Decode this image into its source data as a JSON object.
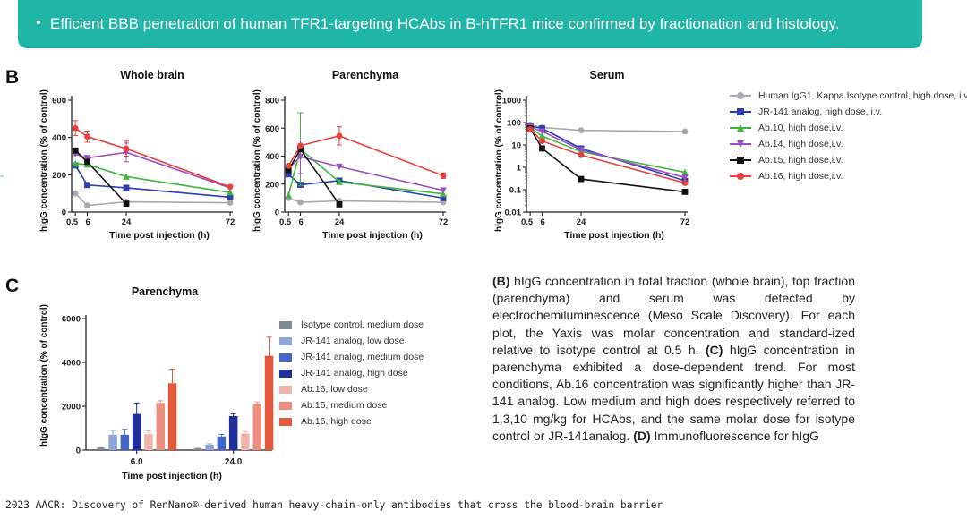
{
  "banner": {
    "bullet": "•",
    "text": "Efficient BBB penetration of human TFR1-targeting HCAbs in B-hTFR1 mice confirmed by fractionation and histology."
  },
  "panels": {
    "b": "B",
    "c": "C"
  },
  "edge_mark": "-",
  "series_styles": [
    {
      "name": "Human IgG1, Kappa Isotype control, high dose, i.v.",
      "color": "#a9a9b0",
      "marker": "circle"
    },
    {
      "name": "JR-141 analog, high dose, i.v.",
      "color": "#2b3fb0",
      "marker": "square"
    },
    {
      "name": "Ab.10, high dose,i.v.",
      "color": "#3fb73f",
      "marker": "triangle"
    },
    {
      "name": "Ab.14, high dose,i.v.",
      "color": "#9b4fc4",
      "marker": "triangle-down"
    },
    {
      "name": "Ab.15, high dose,i.v.",
      "color": "#111111",
      "marker": "square"
    },
    {
      "name": "Ab.16, high dose,i.v.",
      "color": "#e8403a",
      "marker": "circle"
    }
  ],
  "bar_styles": [
    {
      "name": "Isotype control, medium dose",
      "color": "#7f8896"
    },
    {
      "name": "JR-141 analog, low dose",
      "color": "#8fa6dd"
    },
    {
      "name": "JR-141 analog, medium dose",
      "color": "#4466c8"
    },
    {
      "name": "JR-141 analog, high dose",
      "color": "#1f2f9c"
    },
    {
      "name": "Ab.16, low dose",
      "color": "#f2b3aa"
    },
    {
      "name": "Ab.16, medium dose",
      "color": "#ec8e80"
    },
    {
      "name": "Ab.16, high dose",
      "color": "#e55a3a"
    }
  ],
  "chart_data": [
    {
      "id": "whole-brain",
      "type": "line",
      "title": "Whole brain",
      "xlabel": "Time post injection (h)",
      "ylabel": "hIgG concentration (% of control)",
      "x": [
        0.5,
        6,
        24,
        72
      ],
      "x_tick_labels": [
        "0.5",
        "6",
        "24",
        "72"
      ],
      "xlim": [
        0,
        72
      ],
      "ylim": [
        0,
        600
      ],
      "y_ticks": [
        0,
        200,
        400,
        600
      ],
      "y_tick_labels": [
        "0",
        "200",
        "400",
        "600"
      ],
      "series": [
        {
          "name": "Human IgG1, Kappa Isotype control, high dose, i.v.",
          "values": [
            100,
            35,
            55,
            50
          ],
          "errors": [
            0,
            8,
            0,
            0
          ]
        },
        {
          "name": "JR-141 analog, high dose, i.v.",
          "values": [
            250,
            145,
            130,
            80
          ],
          "errors": [
            0,
            0,
            0,
            0
          ]
        },
        {
          "name": "Ab.10, high dose,i.v.",
          "values": [
            260,
            255,
            190,
            105
          ],
          "errors": [
            0,
            0,
            0,
            0
          ]
        },
        {
          "name": "Ab.14, high dose,i.v.",
          "values": [
            310,
            290,
            320,
            130
          ],
          "errors": [
            0,
            0,
            50,
            0
          ]
        },
        {
          "name": "Ab.15, high dose,i.v.",
          "values": [
            330,
            270,
            45,
            null
          ],
          "errors": [
            0,
            0,
            0,
            0
          ]
        },
        {
          "name": "Ab.16, high dose,i.v.",
          "values": [
            450,
            405,
            340,
            135
          ],
          "errors": [
            40,
            30,
            40,
            0
          ]
        }
      ]
    },
    {
      "id": "parenchyma-line",
      "type": "line",
      "title": "Parenchyma",
      "xlabel": "Time post injection (h)",
      "ylabel": "hIgG concentration (% of control)",
      "x": [
        0.5,
        6,
        24,
        72
      ],
      "x_tick_labels": [
        "0.5",
        "6",
        "24",
        "72"
      ],
      "xlim": [
        0,
        72
      ],
      "ylim": [
        0,
        800
      ],
      "y_ticks": [
        0,
        200,
        400,
        600,
        800
      ],
      "y_tick_labels": [
        "0",
        "200",
        "400",
        "600",
        "800"
      ],
      "series": [
        {
          "name": "Human IgG1, Kappa Isotype control, high dose, i.v.",
          "values": [
            100,
            70,
            80,
            70
          ],
          "errors": [
            0,
            0,
            0,
            0
          ]
        },
        {
          "name": "JR-141 analog, high dose, i.v.",
          "values": [
            270,
            195,
            225,
            100
          ],
          "errors": [
            0,
            0,
            0,
            0
          ]
        },
        {
          "name": "Ab.10, high dose,i.v.",
          "values": [
            120,
            450,
            215,
            130
          ],
          "errors": [
            0,
            260,
            0,
            0
          ]
        },
        {
          "name": "Ab.14, high dose,i.v.",
          "values": [
            310,
            395,
            325,
            155
          ],
          "errors": [
            0,
            120,
            0,
            0
          ]
        },
        {
          "name": "Ab.15, high dose,i.v.",
          "values": [
            300,
            450,
            55,
            null
          ],
          "errors": [
            0,
            0,
            0,
            0
          ]
        },
        {
          "name": "Ab.16, high dose,i.v.",
          "values": [
            330,
            475,
            545,
            260
          ],
          "errors": [
            0,
            0,
            65,
            20
          ]
        }
      ]
    },
    {
      "id": "serum",
      "type": "line",
      "title": "Serum",
      "xlabel": "Time post injection (h)",
      "ylabel": "hIgG concentration (% of control)",
      "y_scale": "log",
      "x": [
        0.5,
        6,
        24,
        72
      ],
      "x_tick_labels": [
        "0.5",
        "6",
        "24",
        "72"
      ],
      "xlim": [
        0,
        72
      ],
      "ylim": [
        0.01,
        1000
      ],
      "y_ticks": [
        0.01,
        0.1,
        1,
        10,
        100,
        1000
      ],
      "y_tick_labels": [
        "0.01",
        "0.1",
        "1",
        "10",
        "100",
        "1000"
      ],
      "series": [
        {
          "name": "Human IgG1, Kappa Isotype control, high dose, i.v.",
          "values": [
            80,
            60,
            45,
            40
          ],
          "errors": [
            0,
            0,
            0,
            0
          ]
        },
        {
          "name": "JR-141 analog, high dose, i.v.",
          "values": [
            70,
            55,
            7,
            0.25
          ],
          "errors": [
            0,
            0,
            0,
            0
          ]
        },
        {
          "name": "Ab.10, high dose,i.v.",
          "values": [
            60,
            25,
            5,
            0.6
          ],
          "errors": [
            0,
            0,
            0,
            0
          ]
        },
        {
          "name": "Ab.14, high dose,i.v.",
          "values": [
            65,
            40,
            6,
            0.35
          ],
          "errors": [
            0,
            0,
            0,
            0
          ]
        },
        {
          "name": "Ab.15, high dose,i.v.",
          "values": [
            55,
            7,
            0.3,
            0.08
          ],
          "errors": [
            0,
            0,
            0,
            0
          ]
        },
        {
          "name": "Ab.16, high dose,i.v.",
          "values": [
            50,
            15,
            3.5,
            0.2
          ],
          "errors": [
            0,
            0,
            0,
            0
          ]
        }
      ]
    },
    {
      "id": "parenchyma-bar",
      "type": "bar",
      "title": "Parenchyma",
      "xlabel": "Time post injection (h)",
      "ylabel": "hIgG concentration (% of control)",
      "categories": [
        "6.0",
        "24.0"
      ],
      "ylim": [
        0,
        6000
      ],
      "y_ticks": [
        0,
        2000,
        4000,
        6000
      ],
      "y_tick_labels": [
        "0",
        "2000",
        "4000",
        "6000"
      ],
      "series": [
        {
          "name": "Isotype control, medium dose",
          "values": [
            90,
            60
          ],
          "errors": [
            20,
            20
          ]
        },
        {
          "name": "JR-141 analog, low dose",
          "values": [
            700,
            250
          ],
          "errors": [
            200,
            40
          ]
        },
        {
          "name": "JR-141 analog, medium dose",
          "values": [
            700,
            620
          ],
          "errors": [
            250,
            100
          ]
        },
        {
          "name": "JR-141 analog, high dose",
          "values": [
            1650,
            1550
          ],
          "errors": [
            500,
            100
          ]
        },
        {
          "name": "Ab.16, low dose",
          "values": [
            730,
            750
          ],
          "errors": [
            150,
            100
          ]
        },
        {
          "name": "Ab.16, medium dose",
          "values": [
            2150,
            2100
          ],
          "errors": [
            100,
            100
          ]
        },
        {
          "name": "Ab.16, high dose",
          "values": [
            3050,
            4300
          ],
          "errors": [
            650,
            850
          ]
        }
      ]
    }
  ],
  "description": {
    "b_label": "(B)",
    "b_text": " hIgG concentration in total fraction (whole brain), top fraction (parenchyma) and serum was detected by electrochemiluminescence (Meso Scale Discovery). For each plot, the Yaxis was molar concentration and standard-ized relative to isotype control at 0.5 h. ",
    "c_label": "(C)",
    "c_text": " hIgG concentration in parenchyma exhibited a dose-dependent trend. For most conditions, Ab.16 concentration was significantly higher than JR-141 analog. Low medium and high does respectively referred to 1,3,10 mg/kg for HCAbs, and the same molar dose for isotype control or JR-141analog. ",
    "d_label": "(D)",
    "d_text": " Immunofluorescence for hIgG"
  },
  "footer": "2023 AACR: Discovery of RenNano®-derived human heavy-chain-only antibodies that cross the blood-brain barrier"
}
